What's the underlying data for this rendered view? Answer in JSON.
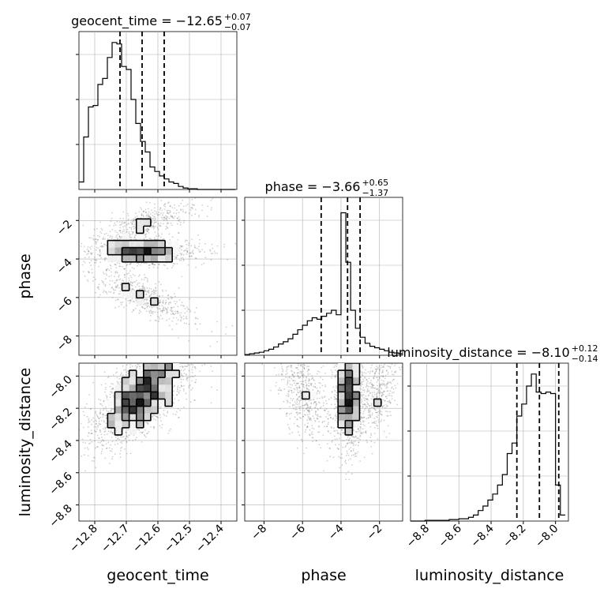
{
  "chart_data": {
    "type": "corner",
    "parameters": [
      "geocent_time",
      "phase",
      "luminosity_distance"
    ],
    "axes": {
      "geocent_time": {
        "label": "geocent_time",
        "range": [
          -12.85,
          -12.35
        ],
        "ticks": [
          -12.8,
          -12.7,
          -12.6,
          -12.5,
          -12.4
        ],
        "tick_labels": [
          "−12.8",
          "−12.7",
          "−12.6",
          "−12.5",
          "−12.4"
        ]
      },
      "phase": {
        "label": "phase",
        "range": [
          -9.0,
          -0.8
        ],
        "ticks": [
          -8,
          -6,
          -4,
          -2
        ],
        "tick_labels": [
          "−8",
          "−6",
          "−4",
          "−2"
        ]
      },
      "luminosity_distance": {
        "label": "luminosity_distance",
        "range": [
          -8.9,
          -7.92
        ],
        "ticks": [
          -8.8,
          -8.6,
          -8.4,
          -8.2,
          -8.0
        ],
        "tick_labels": [
          "−8.8",
          "−8.6",
          "−8.4",
          "−8.2",
          "−8.0"
        ]
      }
    },
    "titles": [
      {
        "param": "geocent_time",
        "text": "geocent_time = −12.65",
        "sup": "+0.07",
        "sub": "−0.07"
      },
      {
        "param": "phase",
        "text": "phase = −3.66",
        "sup": "+0.65",
        "sub": "−1.37"
      },
      {
        "param": "luminosity_distance",
        "text": "luminosity_distance = −8.10",
        "sup": "+0.12",
        "sub": "−0.14"
      }
    ],
    "histograms": {
      "geocent_time": {
        "bin_edges": [
          -12.85,
          -12.835,
          -12.82,
          -12.805,
          -12.79,
          -12.775,
          -12.76,
          -12.745,
          -12.73,
          -12.715,
          -12.7,
          -12.685,
          -12.67,
          -12.655,
          -12.64,
          -12.625,
          -12.61,
          -12.595,
          -12.58,
          -12.565,
          -12.55,
          -12.535,
          -12.52,
          -12.505,
          -12.49,
          -12.475,
          -12.46,
          -12.445,
          -12.43,
          -12.415,
          -12.4,
          -12.385,
          -12.37,
          -12.355
        ],
        "counts": [
          0.05,
          0.35,
          0.55,
          0.56,
          0.7,
          0.74,
          0.88,
          0.98,
          0.97,
          0.82,
          0.8,
          0.6,
          0.44,
          0.32,
          0.25,
          0.15,
          0.12,
          0.09,
          0.07,
          0.05,
          0.04,
          0.02,
          0.01,
          0.005,
          0.005,
          0,
          0,
          0,
          0,
          0,
          0,
          0,
          0
        ],
        "quantiles": [
          -12.72,
          -12.65,
          -12.58
        ]
      },
      "phase": {
        "bin_edges": [
          -9.0,
          -8.75,
          -8.5,
          -8.25,
          -8.0,
          -7.75,
          -7.5,
          -7.25,
          -7.0,
          -6.75,
          -6.5,
          -6.25,
          -6.0,
          -5.75,
          -5.5,
          -5.25,
          -5.0,
          -4.75,
          -4.5,
          -4.25,
          -4.0,
          -3.75,
          -3.5,
          -3.25,
          -3.0,
          -2.75,
          -2.5,
          -2.25,
          -2.0,
          -1.75,
          -1.5,
          -1.25,
          -1.0,
          -0.8
        ],
        "counts": [
          0.005,
          0.01,
          0.015,
          0.02,
          0.03,
          0.04,
          0.055,
          0.075,
          0.09,
          0.11,
          0.14,
          0.17,
          0.2,
          0.23,
          0.25,
          0.24,
          0.26,
          0.28,
          0.3,
          0.27,
          0.95,
          0.62,
          0.3,
          0.18,
          0.12,
          0.08,
          0.06,
          0.05,
          0.04,
          0.03,
          0.02,
          0.015,
          0.01
        ],
        "quantiles": [
          -5.03,
          -3.66,
          -3.01
        ]
      },
      "luminosity_distance": {
        "bin_edges": [
          -8.9,
          -8.87,
          -8.84,
          -8.81,
          -8.78,
          -8.75,
          -8.72,
          -8.69,
          -8.66,
          -8.63,
          -8.6,
          -8.57,
          -8.54,
          -8.51,
          -8.48,
          -8.45,
          -8.42,
          -8.39,
          -8.36,
          -8.33,
          -8.3,
          -8.27,
          -8.24,
          -8.21,
          -8.18,
          -8.15,
          -8.12,
          -8.09,
          -8.06,
          -8.03,
          -8.0,
          -7.97,
          -7.94
        ],
        "counts": [
          0.0,
          0.0,
          0.0,
          0.005,
          0.005,
          0.005,
          0.005,
          0.005,
          0.01,
          0.01,
          0.015,
          0.015,
          0.025,
          0.04,
          0.07,
          0.1,
          0.14,
          0.18,
          0.24,
          0.31,
          0.45,
          0.52,
          0.7,
          0.78,
          0.9,
          0.98,
          0.86,
          0.85,
          0.86,
          0.85,
          0.24,
          0.04
        ],
        "quantiles": [
          -8.24,
          -8.1,
          -7.98
        ]
      }
    },
    "scatter_panels": [
      {
        "x": "geocent_time",
        "y": "phase"
      },
      {
        "x": "geocent_time",
        "y": "luminosity_distance"
      },
      {
        "x": "phase",
        "y": "luminosity_distance"
      }
    ],
    "grid": true,
    "colors": {
      "line": "#000000",
      "points": "#555555",
      "grid": "#b0b0b0"
    }
  }
}
